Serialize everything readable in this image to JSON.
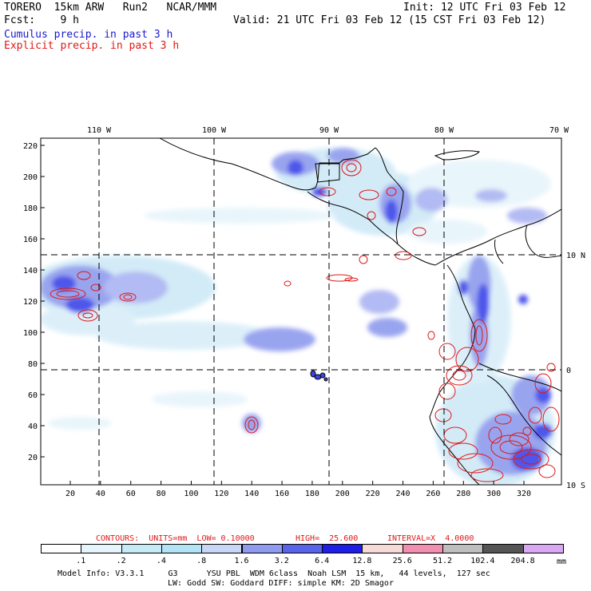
{
  "header": {
    "line1_left": "TORERO  15km ARW   Run2   NCAR/MMM",
    "line1_right": "Init: 12 UTC Fri 03 Feb 12",
    "line2_left": "Fcst:    9 h",
    "line2_right": "Valid: 21 UTC Fri 03 Feb 12 (15 CST Fri 03 Feb 12)",
    "line3": "Cumulus precip. in past 3 h",
    "line4": "Explicit precip. in past 3 h"
  },
  "map": {
    "lon_labels": [
      "110 W",
      "100 W",
      "90 W",
      "80 W",
      "70 W"
    ],
    "lat_labels": [
      "10 N",
      "0",
      "10 S"
    ],
    "x_ticks": [
      "20",
      "40",
      "60",
      "80",
      "100",
      "120",
      "140",
      "160",
      "180",
      "200",
      "220",
      "240",
      "260",
      "280",
      "300",
      "320"
    ],
    "y_ticks": [
      "220",
      "200",
      "180",
      "160",
      "140",
      "120",
      "100",
      "80",
      "60",
      "40",
      "20"
    ],
    "colors": {
      "cumulus": "#3b44e8",
      "explicit": "#e01818",
      "coast": "#000000",
      "grid": "#000000"
    }
  },
  "contour_info": {
    "contours": "CONTOURS:  UNITS=mm  LOW= 0.10000",
    "high": "HIGH=  25.600",
    "interval": "INTERVAL=X  4.0000"
  },
  "legend": {
    "values": [
      ".1",
      ".2",
      ".4",
      ".8",
      "1.6",
      "3.2",
      "6.4",
      "12.8",
      "25.6",
      "51.2",
      "102.4",
      "204.8"
    ],
    "unit": "mm",
    "colors": [
      "#ffffff",
      "#e6f4fb",
      "#c7eaf7",
      "#b3e4f5",
      "#c9d7f7",
      "#8f9bee",
      "#5a64ea",
      "#1e1ee6",
      "#f7dad8",
      "#f08fb0",
      "#bebebe",
      "#555555",
      "#d9a8f2"
    ]
  },
  "footer": {
    "line1": "Model Info: V3.3.1     G3      YSU PBL  WDM 6class  Noah LSM  15 km,   44 levels,  127 sec",
    "line2": "LW: Godd SW: Goddard DIFF: simple KM: 2D Smagor"
  }
}
